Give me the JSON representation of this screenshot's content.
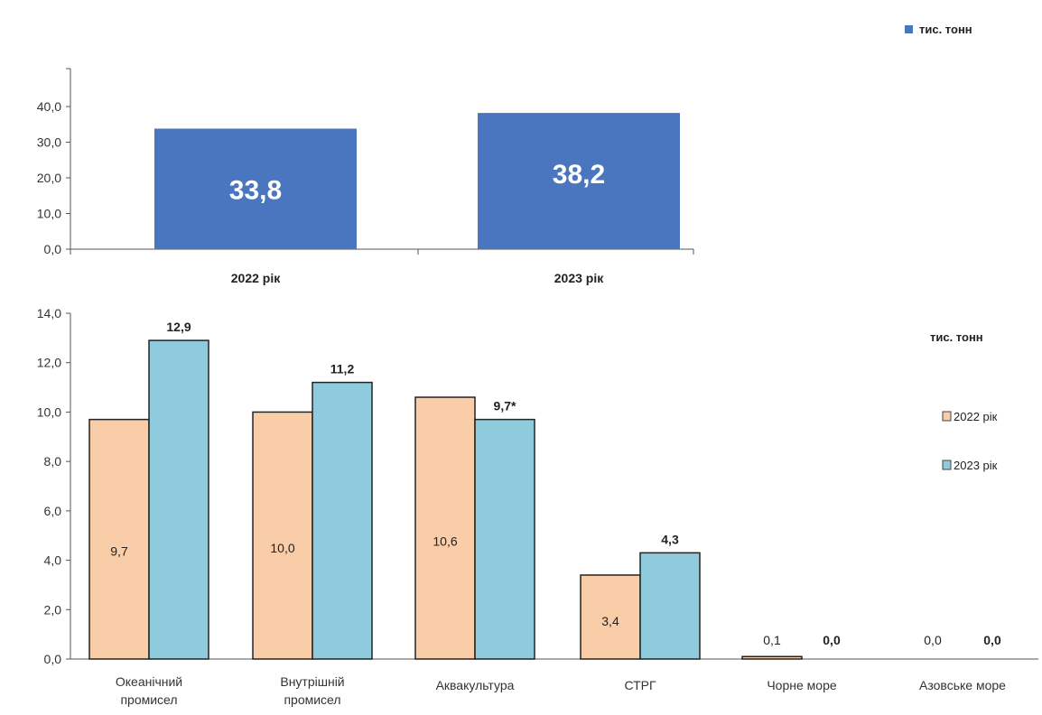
{
  "chart_data": [
    {
      "type": "bar",
      "categories": [
        "2022 рік",
        "2023 рік"
      ],
      "series": [
        {
          "name": "тис. тонн",
          "values": [
            33.8,
            38.2
          ],
          "labels": [
            "33,8",
            "38,2"
          ]
        }
      ],
      "legend": "top-right",
      "yticks": [
        "0,0",
        "10,0",
        "20,0",
        "30,0",
        "40,0"
      ],
      "ylim": [
        0,
        45
      ],
      "colors": {
        "bar": "#4a76c0",
        "bar_text": "#ffffff"
      }
    },
    {
      "type": "bar",
      "categories": [
        "Океанічний промисел",
        "Внутрішній промисел",
        "Аквакультура",
        "СТРГ",
        "Чорне море",
        "Азовське море"
      ],
      "series": [
        {
          "name": "2022 рік",
          "values": [
            9.7,
            10.0,
            10.6,
            3.4,
            0.1,
            0.0
          ],
          "labels": [
            "9,7",
            "10,0",
            "10,6",
            "3,4",
            "0,1",
            "0,0"
          ]
        },
        {
          "name": "2023 рік",
          "values": [
            12.9,
            11.2,
            9.7,
            4.3,
            0.0,
            0.0
          ],
          "labels": [
            "12,9",
            "11,2",
            "9,7*",
            "4,3",
            "0,0",
            "0,0"
          ]
        }
      ],
      "units": "тис. тонн",
      "legend": "right",
      "yticks": [
        "0,0",
        "2,0",
        "4,0",
        "6,0",
        "8,0",
        "10,0",
        "12,0",
        "14,0"
      ],
      "ylim": [
        0,
        14
      ],
      "colors": {
        "series_2022": "#f9cda8",
        "series_2023": "#8ecbdc",
        "outline": "#222222"
      }
    }
  ]
}
